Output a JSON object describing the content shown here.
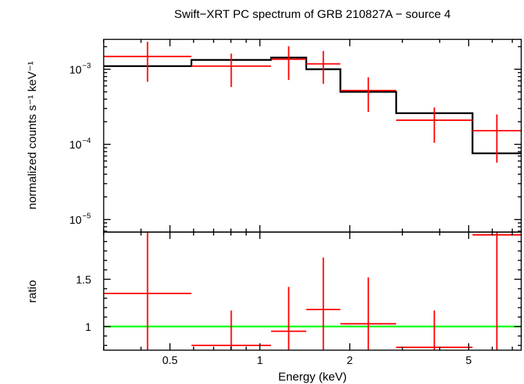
{
  "chart_data": {
    "type": "line",
    "title": "Swift−XRT PC spectrum of GRB 210827A − source 4",
    "xlabel": "Energy (keV)",
    "x_scale": "log",
    "xlim": [
      0.3,
      7.5
    ],
    "x_ticks": [
      {
        "value": 0.5,
        "label": "0.5"
      },
      {
        "value": 1,
        "label": "1"
      },
      {
        "value": 2,
        "label": "2"
      },
      {
        "value": 5,
        "label": "5"
      }
    ],
    "top_panel": {
      "ylabel": "normalized counts s⁻¹ keV⁻¹",
      "y_scale": "log",
      "ylim": [
        6.8e-06,
        0.0025
      ],
      "y_ticks": [
        {
          "value": 0.001,
          "base": "10",
          "exp": "−3"
        },
        {
          "value": 0.0001,
          "base": "10",
          "exp": "−4"
        },
        {
          "value": 1e-05,
          "base": "10",
          "exp": "−5"
        }
      ],
      "data_points": [
        {
          "x_lo": 0.3,
          "x_hi": 0.59,
          "y": 0.00148,
          "y_lo": 0.00068,
          "y_hi": 0.00232
        },
        {
          "x_lo": 0.59,
          "x_hi": 1.09,
          "y": 0.0011,
          "y_lo": 0.00058,
          "y_hi": 0.00162
        },
        {
          "x_lo": 1.09,
          "x_hi": 1.43,
          "y": 0.00136,
          "y_lo": 0.00072,
          "y_hi": 0.00202
        },
        {
          "x_lo": 1.43,
          "x_hi": 1.86,
          "y": 0.00118,
          "y_lo": 0.00064,
          "y_hi": 0.00175
        },
        {
          "x_lo": 1.86,
          "x_hi": 2.86,
          "y": 0.00052,
          "y_lo": 0.00027,
          "y_hi": 0.00078
        },
        {
          "x_lo": 2.86,
          "x_hi": 5.15,
          "y": 0.00021,
          "y_lo": 0.000105,
          "y_hi": 0.00031
        },
        {
          "x_lo": 5.15,
          "x_hi": 7.5,
          "y": 0.000152,
          "y_lo": 5.7e-05,
          "y_hi": 0.00025
        }
      ],
      "model_steps": [
        {
          "x_lo": 0.3,
          "x_hi": 0.59,
          "y": 0.0011
        },
        {
          "x_lo": 0.59,
          "x_hi": 1.09,
          "y": 0.00133
        },
        {
          "x_lo": 1.09,
          "x_hi": 1.43,
          "y": 0.00143
        },
        {
          "x_lo": 1.43,
          "x_hi": 1.86,
          "y": 0.001
        },
        {
          "x_lo": 1.86,
          "x_hi": 2.86,
          "y": 0.0005
        },
        {
          "x_lo": 2.86,
          "x_hi": 5.15,
          "y": 0.00026
        },
        {
          "x_lo": 5.15,
          "x_hi": 7.5,
          "y": 7.6e-05
        }
      ]
    },
    "bottom_panel": {
      "ylabel": "ratio",
      "y_scale": "linear",
      "ylim": [
        0.75,
        2.0
      ],
      "y_ticks": [
        {
          "value": 1,
          "label": "1"
        },
        {
          "value": 1.5,
          "label": "1.5"
        }
      ],
      "reference_line": 1,
      "data_points": [
        {
          "x_lo": 0.3,
          "x_hi": 0.59,
          "y": 1.35,
          "y_lo": 0.72,
          "y_hi": 2.05
        },
        {
          "x_lo": 0.59,
          "x_hi": 1.09,
          "y": 0.8,
          "y_lo": 0.5,
          "y_hi": 1.17
        },
        {
          "x_lo": 1.09,
          "x_hi": 1.43,
          "y": 0.95,
          "y_lo": 0.57,
          "y_hi": 1.42
        },
        {
          "x_lo": 1.43,
          "x_hi": 1.86,
          "y": 1.18,
          "y_lo": 0.62,
          "y_hi": 1.73
        },
        {
          "x_lo": 1.86,
          "x_hi": 2.86,
          "y": 1.03,
          "y_lo": 0.55,
          "y_hi": 1.52
        },
        {
          "x_lo": 2.86,
          "x_hi": 5.15,
          "y": 0.78,
          "y_lo": 0.42,
          "y_hi": 1.17
        },
        {
          "x_lo": 5.15,
          "x_hi": 7.5,
          "y": 1.97,
          "y_lo": 0.7,
          "y_hi": 2.1
        }
      ]
    },
    "colors": {
      "data": "#ff0000",
      "model": "#000000",
      "reference": "#00ff00"
    }
  }
}
